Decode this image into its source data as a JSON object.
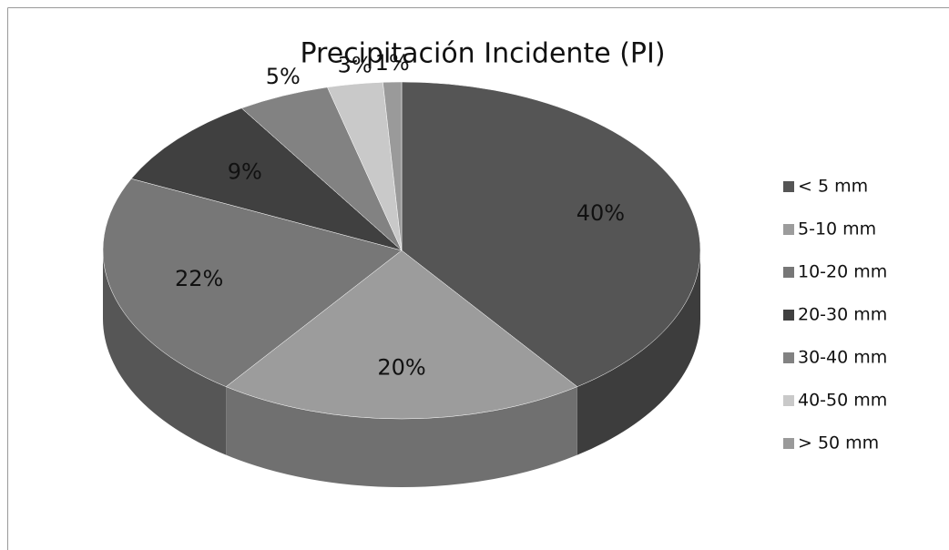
{
  "chart_data": {
    "type": "pie",
    "title": "Precipitación Incidente (PI)",
    "categories": [
      "< 5 mm",
      "5-10 mm",
      "10-20 mm",
      "20-30 mm",
      "30-40 mm",
      "40-50 mm",
      "> 50 mm"
    ],
    "values": [
      40,
      20,
      22,
      9,
      5,
      3,
      1
    ],
    "value_labels": [
      "40%",
      "20%",
      "22%",
      "9%",
      "5%",
      "3%",
      "1%"
    ],
    "colors": [
      "#555555",
      "#9c9c9c",
      "#777777",
      "#404040",
      "#828282",
      "#c9c9c9",
      "#9a9a9a"
    ],
    "legend": "right"
  }
}
